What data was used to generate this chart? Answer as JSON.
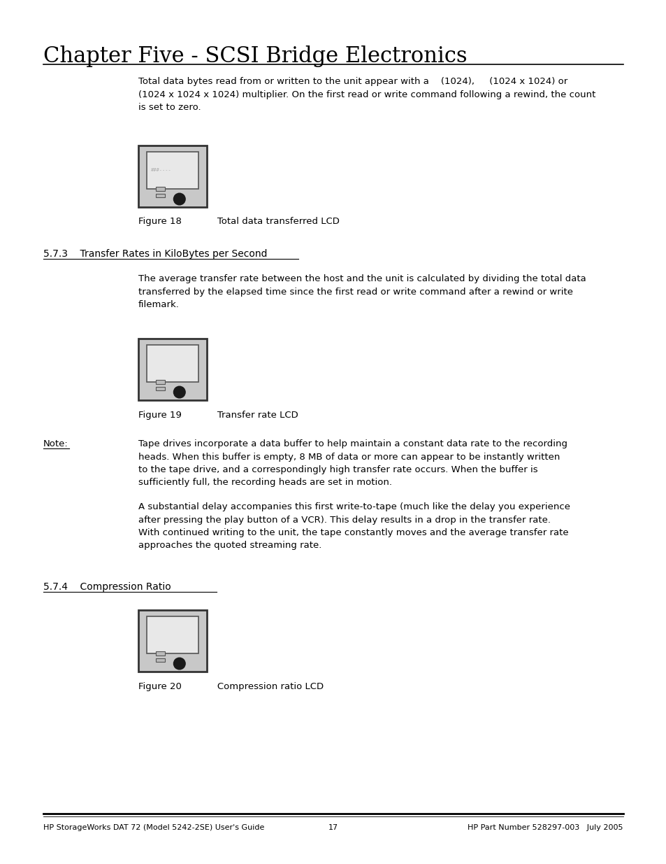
{
  "title": "Chapter Five - SCSI Bridge Electronics",
  "bg_color": "#ffffff",
  "text_color": "#000000",
  "para1": "Total data bytes read from or written to the unit appear with a    (1024),     (1024 x 1024) or\n(1024 x 1024 x 1024) multiplier. On the first read or write command following a rewind, the count\nis set to zero.",
  "fig18_caption": "Figure 18            Total data transferred LCD",
  "section573": "5.7.3    Transfer Rates in KiloBytes per Second",
  "para2": "The average transfer rate between the host and the unit is calculated by dividing the total data\ntransferred by the elapsed time since the first read or write command after a rewind or write\nfilemark.",
  "fig19_caption": "Figure 19            Transfer rate LCD",
  "note_label": "Note:",
  "note_text1": "Tape drives incorporate a data buffer to help maintain a constant data rate to the recording\nheads. When this buffer is empty, 8 MB of data or more can appear to be instantly written\nto the tape drive, and a correspondingly high transfer rate occurs. When the buffer is\nsufficiently full, the recording heads are set in motion.",
  "note_text2": "A substantial delay accompanies this first write-to-tape (much like the delay you experience\nafter pressing the play button of a VCR). This delay results in a drop in the transfer rate.\nWith continued writing to the unit, the tape constantly moves and the average transfer rate\napproaches the quoted streaming rate.",
  "section574": "5.7.4    Compression Ratio",
  "fig20_caption": "Figure 20            Compression ratio LCD",
  "footer_left": "HP StorageWorks DAT 72 (Model 5242-2SE) User's Guide",
  "footer_center": "17",
  "footer_right": "HP Part Number 528297-003   July 2005",
  "lcd_outer_color": "#c8c8c8",
  "lcd_screen_color": "#f0f0f0",
  "lcd_border_color": "#333333",
  "lcd_text_color": "#aaaaaa"
}
